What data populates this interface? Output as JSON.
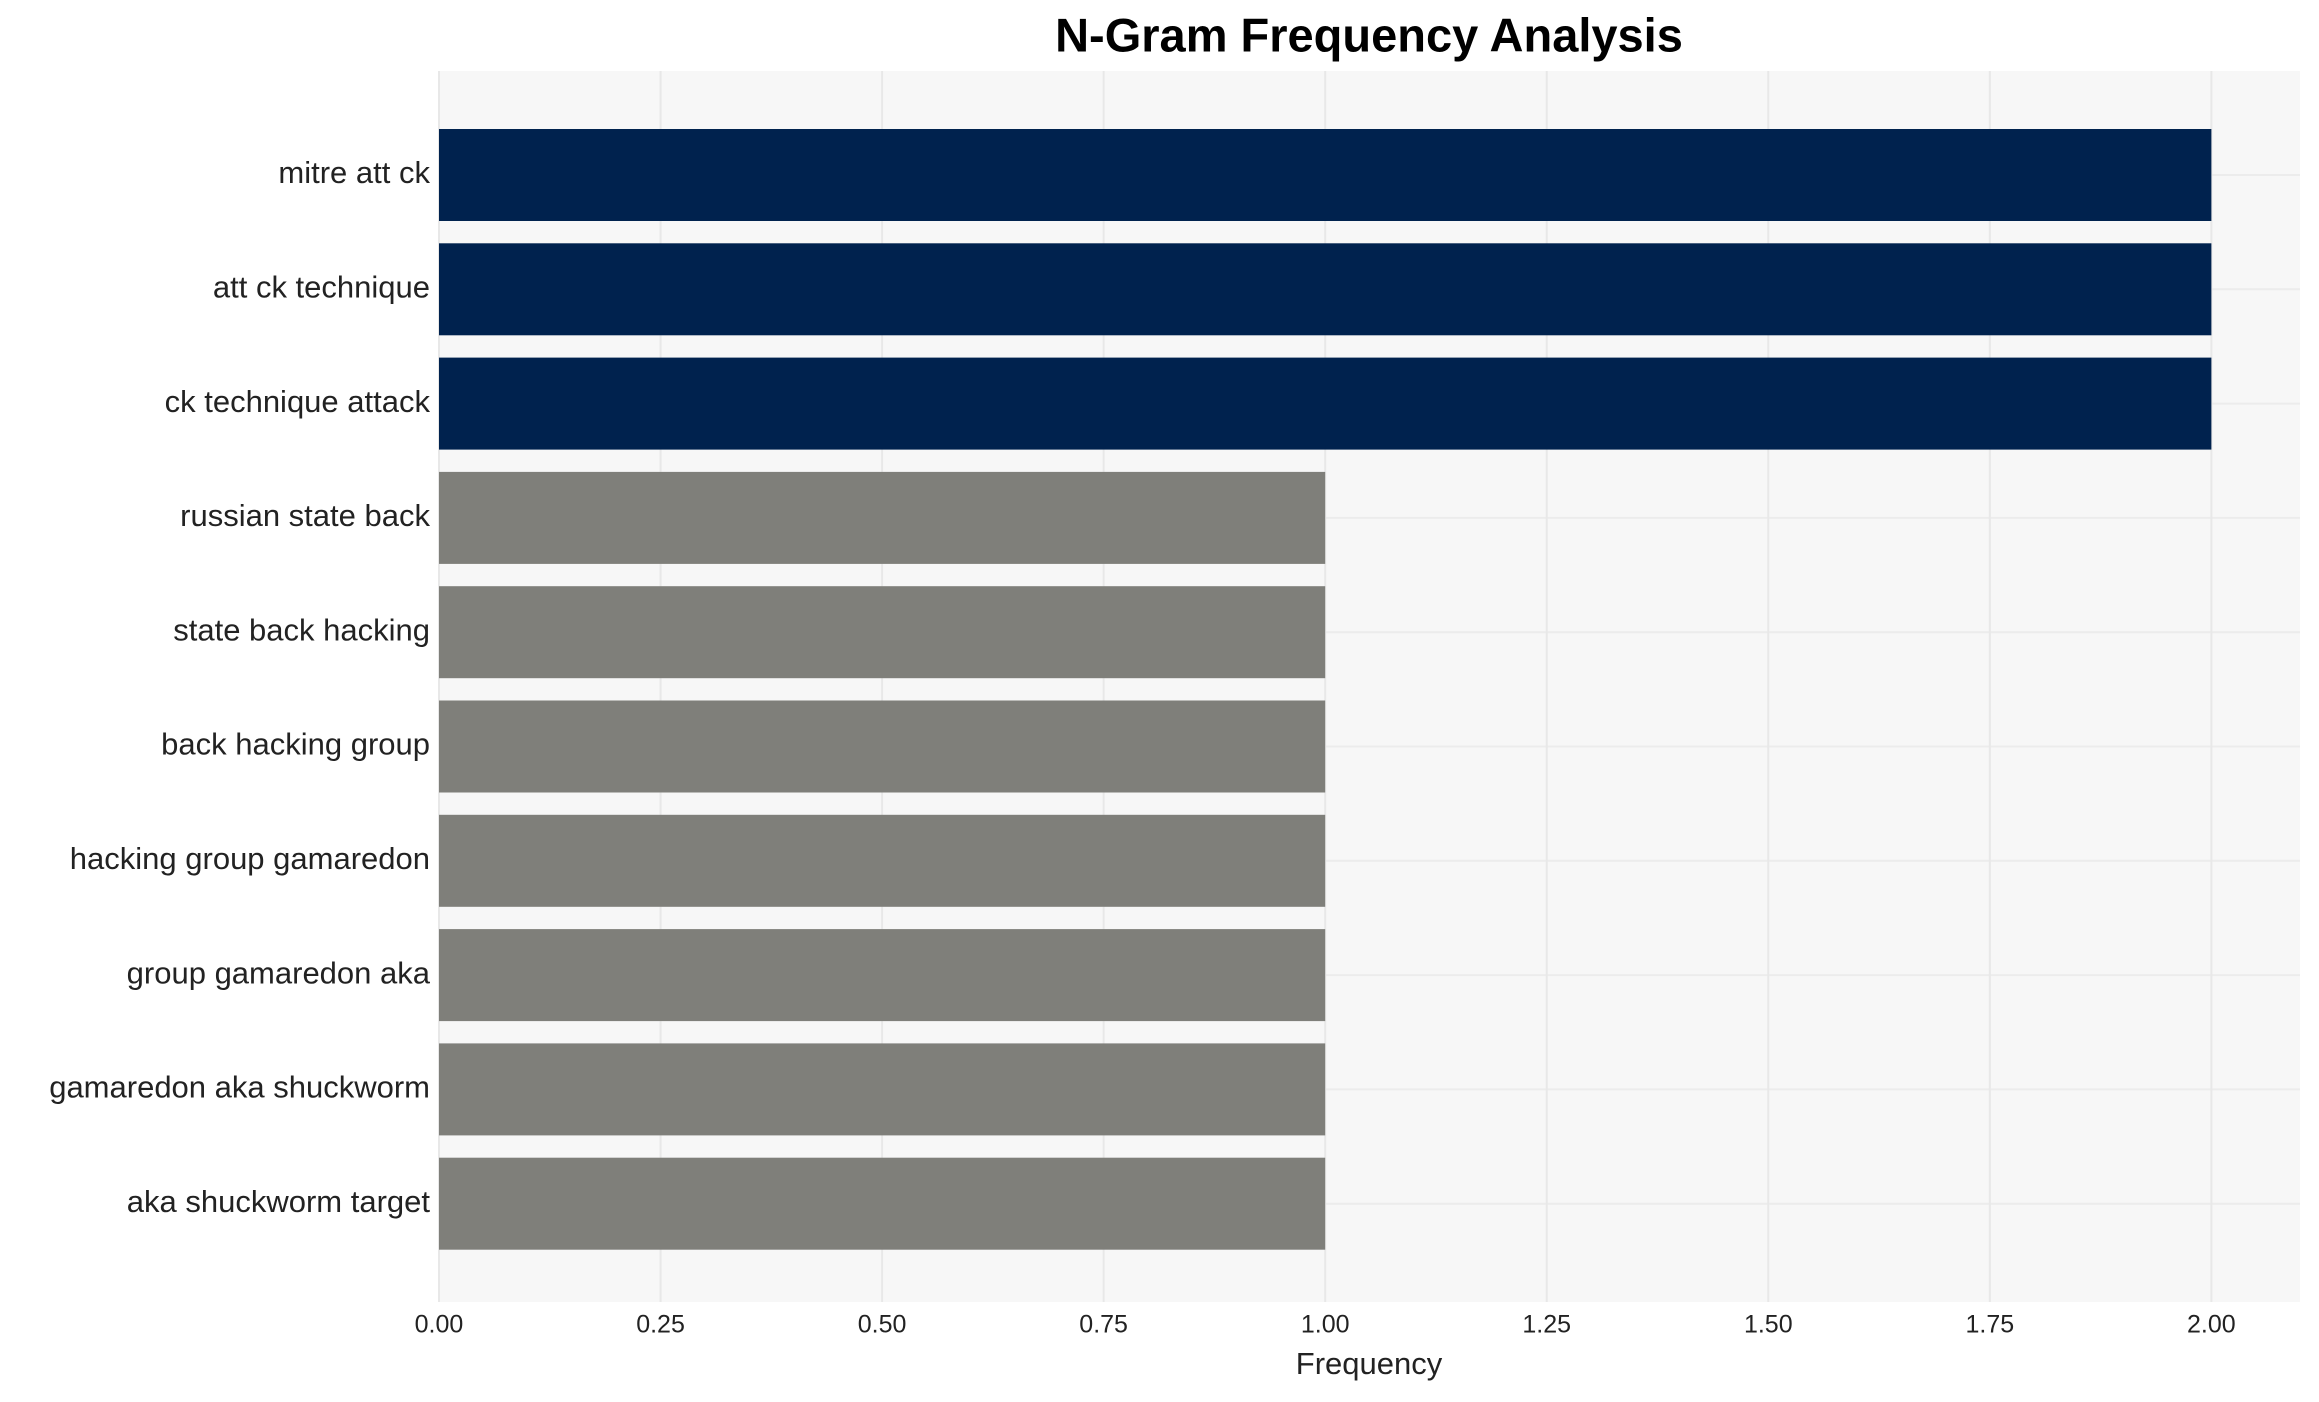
{
  "chart_data": {
    "type": "barh",
    "title": "N-Gram Frequency Analysis",
    "x_label": "Frequency",
    "categories": [
      "mitre att ck",
      "att ck technique",
      "ck technique attack",
      "russian state back",
      "state back hacking",
      "back hacking group",
      "hacking group gamaredon",
      "group gamaredon aka",
      "gamaredon aka shuckworm",
      "aka shuckworm target"
    ],
    "values": [
      2,
      2,
      2,
      1,
      1,
      1,
      1,
      1,
      1,
      1
    ],
    "colors": [
      "#00224e",
      "#00224e",
      "#00224e",
      "#7f7f7a",
      "#7f7f7a",
      "#7f7f7a",
      "#7f7f7a",
      "#7f7f7a",
      "#7f7f7a",
      "#7f7f7a"
    ],
    "xlim": [
      0,
      2.1
    ],
    "xticks": [
      {
        "value": 0,
        "label": "0.00"
      },
      {
        "value": 0.25,
        "label": "0.25"
      },
      {
        "value": 0.5,
        "label": "0.50"
      },
      {
        "value": 0.75,
        "label": "0.75"
      },
      {
        "value": 1,
        "label": "1.00"
      },
      {
        "value": 1.25,
        "label": "1.25"
      },
      {
        "value": 1.5,
        "label": "1.50"
      },
      {
        "value": 1.75,
        "label": "1.75"
      },
      {
        "value": 2,
        "label": "2.00"
      }
    ],
    "grid": true
  }
}
